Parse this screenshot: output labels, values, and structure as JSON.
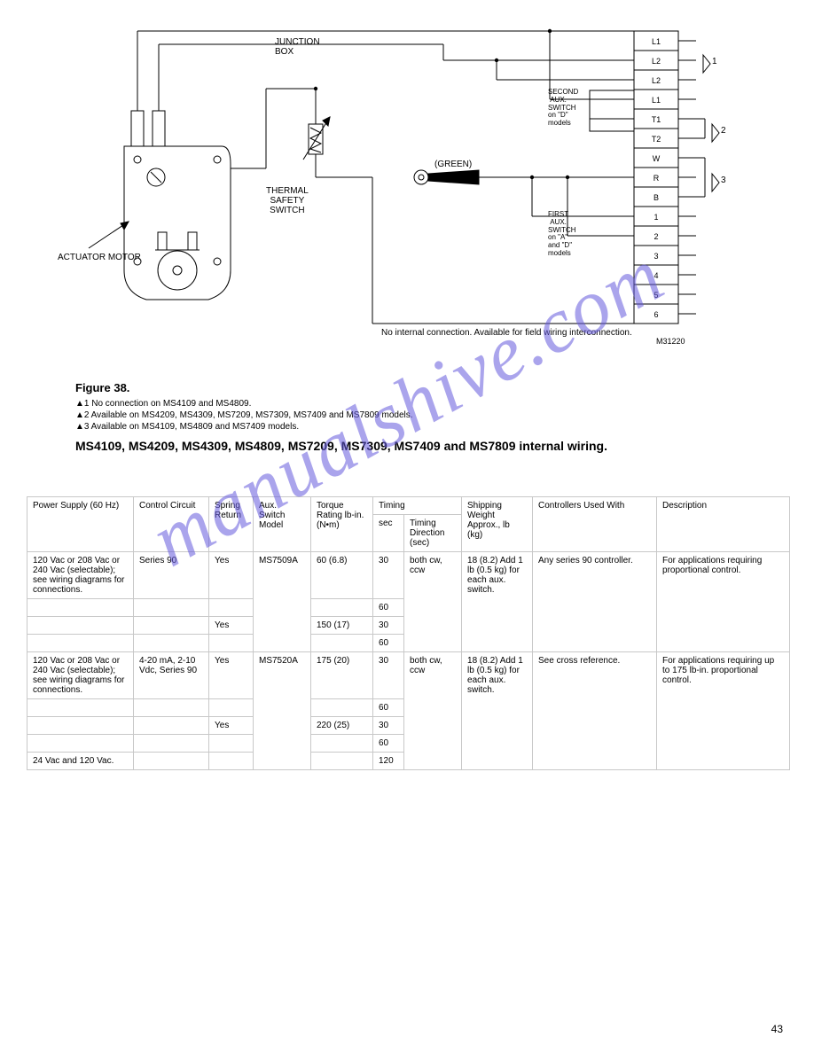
{
  "page_number": "43",
  "watermark_text": "manualshive.com",
  "diagram": {
    "caption": "Figure 38.",
    "section_title": "MS4109, MS4209, MS4309, MS4809, MS7209, MS7309, MS7409 and MS7809 internal wiring.",
    "field_labels": {
      "thermal_safety": "THERMAL\nSAFETY\nSWITCH",
      "junction_box": "JUNCTION\nBOX",
      "green": "(GREEN)",
      "second": "SECOND\n AUX.\nSWITCH\non \"D\"\nmodels",
      "first": "FIRST\n AUX.\nSWITCH\non \"A\"\nand \"D\"\nmodels",
      "no_internal": "No internal connection.\nAvailable for field wiring interconnection.",
      "m31220": "M31220",
      "actuator": "ACTUATOR MOTOR"
    },
    "terminals": [
      "L1",
      "L2",
      "L2",
      "L1",
      "T1",
      "T2",
      "W",
      "R",
      "B",
      "1",
      "2",
      "3",
      "4",
      "5",
      "6"
    ],
    "terminal_group_labels": {
      "tri1": "▲1",
      "tri2": "▲2",
      "tri3": "▲3"
    },
    "stroke_color": "#000000",
    "stroke_width": 1,
    "background_color": "#ffffff"
  },
  "footnotes": [
    "▲1  No connection on MS4109 and MS4809.",
    "▲2  Available on MS4209, MS4309, MS7209, MS7309, MS7409 and MS7809 models.",
    "▲3  Available on MS4109, MS4809 and MS7409 models."
  ],
  "table": {
    "columns": [
      "Power Supply (60 Hz)",
      "Control Circuit",
      "Spring Return",
      "Aux. Switch Model",
      "Torque Rating lb-in. (N•m)",
      "Timing",
      "Timing Direction (sec)",
      "Shipping Weight Approx., lb (kg)",
      "Controllers Used With",
      "Description"
    ],
    "col_widths": [
      "120",
      "90",
      "60",
      "60",
      "70",
      "30",
      "70",
      "80",
      "150",
      "150"
    ],
    "rows": [
      {
        "power": "120 Vac or 208 Vac or 240 Vac (selectable); see wiring diagrams for connections.",
        "control": "Series 90",
        "spring": "Yes",
        "aux": "MS7509A",
        "aux_rowspan": 4,
        "torque": "60 (6.8)",
        "timing": "30",
        "timing_dir": "both cw, ccw",
        "timing_dir_rowspan": 4,
        "shipping": "18 (8.2) Add 1 lb (0.5 kg) for each aux. switch.",
        "shipping_rowspan": 4,
        "controllers": "Any series 90 controller.",
        "controllers_rowspan": 4,
        "description": "For applications requiring proportional control.",
        "description_rowspan": 4
      },
      {
        "power": "",
        "control": "",
        "spring": "",
        "torque": "",
        "timing": "60"
      },
      {
        "power": "",
        "control": "",
        "spring": "Yes",
        "torque": "150 (17)",
        "timing": "30"
      },
      {
        "power": "",
        "control": "",
        "spring": "",
        "torque": "",
        "timing": "60"
      },
      {
        "power": "120 Vac or 208 Vac or 240 Vac (selectable); see wiring diagrams for connections.",
        "control": "4-20 mA, 2-10 Vdc, Series 90",
        "spring": "Yes",
        "aux": "MS7520A",
        "aux_rowspan": 5,
        "torque": "175 (20)",
        "timing": "30",
        "timing_dir": "both cw, ccw",
        "timing_dir_rowspan": 5,
        "shipping": "18 (8.2) Add 1 lb (0.5 kg) for each aux. switch.",
        "shipping_rowspan": 5,
        "controllers": "See cross reference.",
        "controllers_rowspan": 5,
        "description": "For applications requiring up to 175 lb-in. proportional control.",
        "description_rowspan": 5
      },
      {
        "power": "",
        "control": "",
        "spring": "",
        "torque": "",
        "timing": "60"
      },
      {
        "power": "",
        "control": "",
        "spring": "Yes",
        "torque": "220 (25)",
        "timing": "30"
      },
      {
        "power": "",
        "control": "",
        "spring": "",
        "torque": "",
        "timing": "60"
      },
      {
        "power": "24 Vac and 120 Vac.",
        "control": "",
        "spring": "",
        "torque": "",
        "timing": "120"
      }
    ],
    "border_color": "#c8c8c8",
    "font_size": 10
  }
}
